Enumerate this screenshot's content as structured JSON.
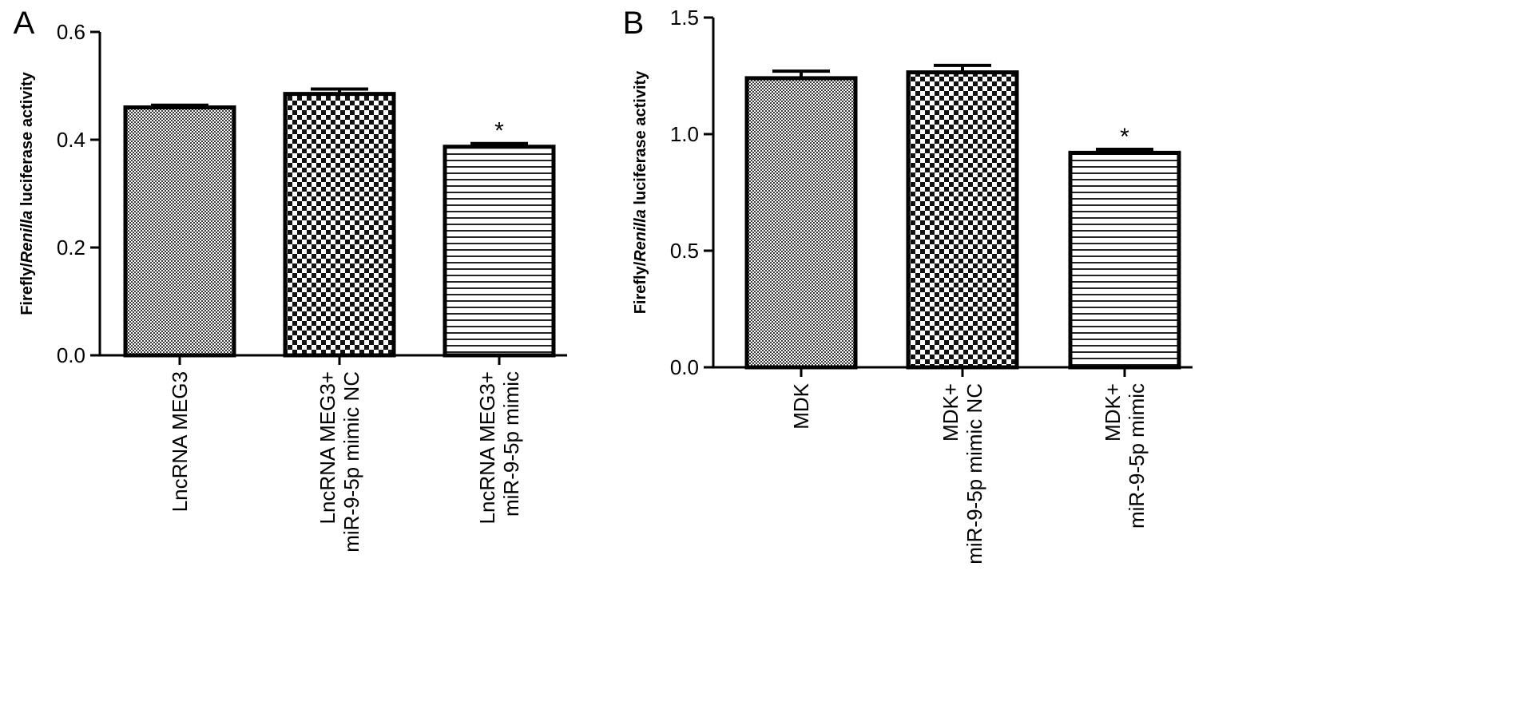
{
  "chart_data": [
    {
      "panel": "A",
      "type": "bar",
      "ylabel": {
        "pre": "Firefly/",
        "italic": "Renilla",
        "post": " luciferase activity"
      },
      "ylim": [
        0,
        0.6
      ],
      "yticks": [
        "0.0",
        "0.2",
        "0.4",
        "0.6"
      ],
      "categories": [
        [
          "LncRNA MEG3"
        ],
        [
          "LncRNA MEG3+",
          "miR-9-5p mimic NC"
        ],
        [
          "LncRNA MEG3+",
          "miR-9-5p mimic"
        ]
      ],
      "values": [
        0.46,
        0.485,
        0.387
      ],
      "errors": [
        0.004,
        0.009,
        0.006
      ],
      "significance": [
        "",
        "",
        "*"
      ],
      "patterns": [
        "fine-dots",
        "checker",
        "hstripes"
      ]
    },
    {
      "panel": "B",
      "type": "bar",
      "ylabel": {
        "pre": "Firefly/",
        "italic": "Renilla",
        "post": " luciferase activity"
      },
      "ylim": [
        0,
        1.5
      ],
      "yticks": [
        "0.0",
        "0.5",
        "1.0",
        "1.5"
      ],
      "categories": [
        [
          "MDK"
        ],
        [
          "MDK+",
          "miR-9-5p mimic NC"
        ],
        [
          "MDK+",
          "miR-9-5p mimic"
        ]
      ],
      "values": [
        1.24,
        1.265,
        0.92
      ],
      "errors": [
        0.03,
        0.03,
        0.015
      ],
      "significance": [
        "",
        "",
        "*"
      ],
      "patterns": [
        "fine-dots",
        "checker",
        "hstripes"
      ]
    }
  ]
}
